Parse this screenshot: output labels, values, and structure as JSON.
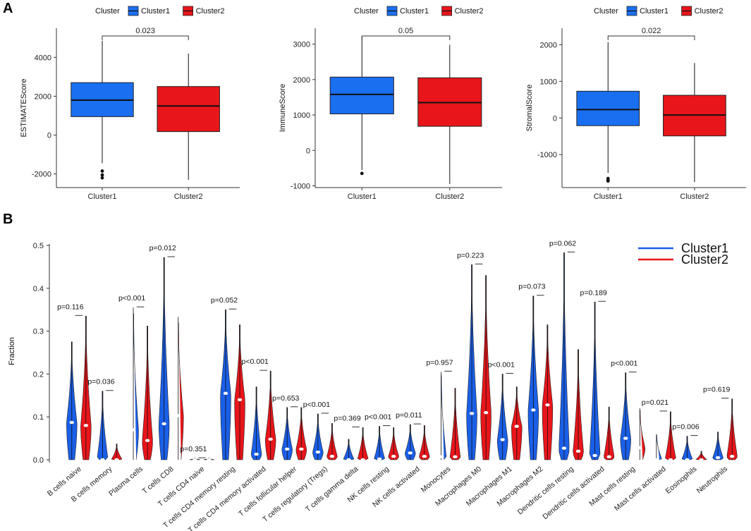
{
  "panel_labels": [
    "A",
    "B"
  ],
  "chart_data": [
    {
      "type": "box",
      "ylabel": "ESTIMATEScore",
      "legend_title": "Cluster",
      "categories": [
        "Cluster1",
        "Cluster2"
      ],
      "colors": [
        "#1a6ff0",
        "#e8151a"
      ],
      "yticks": [
        -2000,
        0,
        2000,
        4000
      ],
      "ylim": [
        -2700,
        5500
      ],
      "pvalue": "0.023",
      "boxes": [
        {
          "min": -1450,
          "q1": 950,
          "median": 1800,
          "q3": 2700,
          "max": 4850,
          "outliers": [
            -1850,
            -2050,
            -2200
          ]
        },
        {
          "min": -2300,
          "q1": 180,
          "median": 1500,
          "q3": 2500,
          "max": 4200,
          "outliers": []
        }
      ]
    },
    {
      "type": "box",
      "ylabel": "ImmuneScore",
      "legend_title": "Cluster",
      "categories": [
        "Cluster1",
        "Cluster2"
      ],
      "colors": [
        "#1a6ff0",
        "#e8151a"
      ],
      "yticks": [
        -1000,
        0,
        1000,
        2000,
        3000
      ],
      "ylim": [
        -1050,
        3450
      ],
      "pvalue": "0.05",
      "boxes": [
        {
          "min": -550,
          "q1": 1030,
          "median": 1580,
          "q3": 2070,
          "max": 3200,
          "outliers": [
            -650
          ]
        },
        {
          "min": -950,
          "q1": 680,
          "median": 1350,
          "q3": 2050,
          "max": 2980,
          "outliers": []
        }
      ]
    },
    {
      "type": "box",
      "ylabel": "StromalScore",
      "legend_title": "Cluster",
      "categories": [
        "Cluster1",
        "Cluster2"
      ],
      "colors": [
        "#1a6ff0",
        "#e8151a"
      ],
      "yticks": [
        -1000,
        0,
        1000,
        2000
      ],
      "ylim": [
        -1900,
        2450
      ],
      "pvalue": "0.022",
      "boxes": [
        {
          "min": -1500,
          "q1": -210,
          "median": 230,
          "q3": 730,
          "max": 2070,
          "outliers": [
            -1650,
            -1700,
            -1720
          ]
        },
        {
          "min": -1750,
          "q1": -490,
          "median": 80,
          "q3": 620,
          "max": 1500,
          "outliers": []
        }
      ]
    },
    {
      "type": "violin",
      "ylabel": "Fraction",
      "ylim": [
        0,
        0.5
      ],
      "yticks": [
        "0.0",
        "0.1",
        "0.2",
        "0.3",
        "0.4",
        "0.5"
      ],
      "series": [
        {
          "name": "Cluster1",
          "color": "#1a5fe8"
        },
        {
          "name": "Cluster2",
          "color": "#e8151a"
        }
      ],
      "cells": [
        {
          "name": "B cells naive",
          "p": "p=0.116",
          "c1": {
            "max": 0.275,
            "median": 0.087
          },
          "c2": {
            "max": 0.335,
            "median": 0.08
          }
        },
        {
          "name": "B cells memory",
          "p": "p=0.036",
          "c1": {
            "max": 0.16,
            "median": 0.0
          },
          "c2": {
            "max": 0.037,
            "median": 0.0
          }
        },
        {
          "name": "Plasma cells",
          "p": "p<0.001",
          "c1": {
            "max": 0.355,
            "median": 0.07
          },
          "c2": {
            "max": 0.312,
            "median": 0.045
          }
        },
        {
          "name": "T cells CD8",
          "p": "p=0.012",
          "c1": {
            "max": 0.472,
            "median": 0.084
          },
          "c2": {
            "max": 0.333,
            "median": 0.103
          }
        },
        {
          "name": "T cells CD4 naive",
          "p": "p=0.351",
          "c1": {
            "max": 0.003,
            "median": 0.0
          },
          "c2": {
            "max": 0.003,
            "median": 0.0
          }
        },
        {
          "name": "T cells CD4 memory resting",
          "p": "p=0.052",
          "c1": {
            "max": 0.35,
            "median": 0.155
          },
          "c2": {
            "max": 0.315,
            "median": 0.14
          }
        },
        {
          "name": "T cells CD4 memory activated",
          "p": "p<0.001",
          "c1": {
            "max": 0.17,
            "median": 0.013
          },
          "c2": {
            "max": 0.207,
            "median": 0.048
          }
        },
        {
          "name": "T cells follicular helper",
          "p": "p=0.653",
          "c1": {
            "max": 0.122,
            "median": 0.025
          },
          "c2": {
            "max": 0.122,
            "median": 0.025
          }
        },
        {
          "name": "T cells regulatory (Tregs)",
          "p": "p<0.001",
          "c1": {
            "max": 0.107,
            "median": 0.018
          },
          "c2": {
            "max": 0.085,
            "median": 0.008
          }
        },
        {
          "name": "T cells gamma delta",
          "p": "p=0.369",
          "c1": {
            "max": 0.048,
            "median": 0.0
          },
          "c2": {
            "max": 0.075,
            "median": 0.0
          }
        },
        {
          "name": "NK cells resting",
          "p": "p<0.001",
          "c1": {
            "max": 0.078,
            "median": 0.002
          },
          "c2": {
            "max": 0.075,
            "median": 0.008
          }
        },
        {
          "name": "NK cells activated",
          "p": "p=0.011",
          "c1": {
            "max": 0.082,
            "median": 0.016
          },
          "c2": {
            "max": 0.08,
            "median": 0.008
          }
        },
        {
          "name": "Monocytes",
          "p": "p=0.957",
          "c1": {
            "max": 0.205,
            "median": 0.007
          },
          "c2": {
            "max": 0.167,
            "median": 0.007
          }
        },
        {
          "name": "Macrophages M0",
          "p": "p=0.223",
          "c1": {
            "max": 0.455,
            "median": 0.108
          },
          "c2": {
            "max": 0.43,
            "median": 0.11
          }
        },
        {
          "name": "Macrophages M1",
          "p": "p<0.001",
          "c1": {
            "max": 0.2,
            "median": 0.047
          },
          "c2": {
            "max": 0.17,
            "median": 0.078
          }
        },
        {
          "name": "Macrophages M2",
          "p": "p=0.073",
          "c1": {
            "max": 0.382,
            "median": 0.116
          },
          "c2": {
            "max": 0.315,
            "median": 0.128
          }
        },
        {
          "name": "Dendritic cells resting",
          "p": "p=0.062",
          "c1": {
            "max": 0.483,
            "median": 0.027
          },
          "c2": {
            "max": 0.257,
            "median": 0.02
          }
        },
        {
          "name": "Dendritic cells activated",
          "p": "p=0.189",
          "c1": {
            "max": 0.368,
            "median": 0.01
          },
          "c2": {
            "max": 0.123,
            "median": 0.007
          }
        },
        {
          "name": "Mast cells resting",
          "p": "p<0.001",
          "c1": {
            "max": 0.203,
            "median": 0.05
          },
          "c2": {
            "max": 0.12,
            "median": 0.028
          }
        },
        {
          "name": "Mast cells activated",
          "p": "p=0.021",
          "c1": {
            "max": 0.06,
            "median": 0.0
          },
          "c2": {
            "max": 0.112,
            "median": 0.0
          }
        },
        {
          "name": "Eosinophils",
          "p": "p=0.006",
          "c1": {
            "max": 0.055,
            "median": 0.0
          },
          "c2": {
            "max": 0.02,
            "median": 0.0
          }
        },
        {
          "name": "Neutrophils",
          "p": "p=0.619",
          "c1": {
            "max": 0.065,
            "median": 0.005
          },
          "c2": {
            "max": 0.142,
            "median": 0.008
          }
        }
      ]
    }
  ]
}
